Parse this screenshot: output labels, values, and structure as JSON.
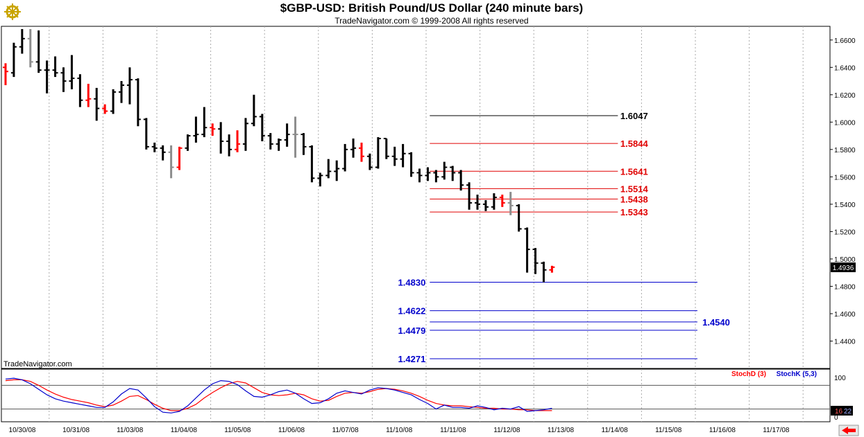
{
  "header": {
    "title": "$GBP-USD:  British Pound/US Dollar  (240 minute bars)",
    "subtitle": "TradeNavigator.com © 1999-2008 All rights reserved"
  },
  "watermark": "TradeNavigator.com",
  "colors": {
    "up": "#000000",
    "down": "#ff0000",
    "neutral": "#8c8c8c",
    "retracement": "#e00000",
    "extension": "#0000cc",
    "stochD": "#ff0000",
    "stochK": "#0000cc",
    "grid": "#aaaaaa"
  },
  "icons": {
    "logo": "ship-wheel-icon",
    "scroll": "arrow-left-icon"
  },
  "chart_data": [
    {
      "type": "ohlc",
      "title": "$GBP-USD:  British Pound/US Dollar  (240 minute bars)",
      "ylim": [
        1.42,
        1.67
      ],
      "yticks": [
        "1.6600",
        "1.6400",
        "1.6200",
        "1.6000",
        "1.5800",
        "1.5600",
        "1.5400",
        "1.5200",
        "1.5000",
        "1.4800",
        "1.4600",
        "1.4400"
      ],
      "x_labels": [
        "10/30/08",
        "10/31/08",
        "11/03/08",
        "11/04/08",
        "11/05/08",
        "11/06/08",
        "11/07/08",
        "11/10/08",
        "11/11/08",
        "11/12/08",
        "11/13/08",
        "11/14/08",
        "11/15/08",
        "11/16/08",
        "11/17/08"
      ],
      "last_price": "1.4936",
      "bars": [
        {
          "o": 1.64,
          "h": 1.643,
          "l": 1.627,
          "c": 1.637,
          "d": "dn"
        },
        {
          "o": 1.636,
          "h": 1.658,
          "l": 1.633,
          "c": 1.655,
          "d": "up"
        },
        {
          "o": 1.655,
          "h": 1.668,
          "l": 1.65,
          "c": 1.661,
          "d": "up"
        },
        {
          "o": 1.661,
          "h": 1.668,
          "l": 1.64,
          "c": 1.644,
          "d": "nu"
        },
        {
          "o": 1.644,
          "h": 1.667,
          "l": 1.636,
          "c": 1.638,
          "d": "up"
        },
        {
          "o": 1.638,
          "h": 1.645,
          "l": 1.621,
          "c": 1.638,
          "d": "up"
        },
        {
          "o": 1.638,
          "h": 1.648,
          "l": 1.633,
          "c": 1.636,
          "d": "up"
        },
        {
          "o": 1.636,
          "h": 1.64,
          "l": 1.622,
          "c": 1.63,
          "d": "up"
        },
        {
          "o": 1.63,
          "h": 1.649,
          "l": 1.624,
          "c": 1.632,
          "d": "up"
        },
        {
          "o": 1.632,
          "h": 1.635,
          "l": 1.611,
          "c": 1.616,
          "d": "up"
        },
        {
          "o": 1.616,
          "h": 1.628,
          "l": 1.611,
          "c": 1.617,
          "d": "dn"
        },
        {
          "o": 1.617,
          "h": 1.625,
          "l": 1.601,
          "c": 1.61,
          "d": "up"
        },
        {
          "o": 1.61,
          "h": 1.613,
          "l": 1.606,
          "c": 1.608,
          "d": "dn"
        },
        {
          "o": 1.608,
          "h": 1.624,
          "l": 1.606,
          "c": 1.622,
          "d": "up"
        },
        {
          "o": 1.622,
          "h": 1.63,
          "l": 1.614,
          "c": 1.627,
          "d": "up"
        },
        {
          "o": 1.627,
          "h": 1.64,
          "l": 1.613,
          "c": 1.631,
          "d": "up"
        },
        {
          "o": 1.631,
          "h": 1.632,
          "l": 1.597,
          "c": 1.602,
          "d": "up"
        },
        {
          "o": 1.602,
          "h": 1.603,
          "l": 1.58,
          "c": 1.582,
          "d": "up"
        },
        {
          "o": 1.582,
          "h": 1.585,
          "l": 1.578,
          "c": 1.581,
          "d": "up"
        },
        {
          "o": 1.581,
          "h": 1.583,
          "l": 1.572,
          "c": 1.578,
          "d": "up"
        },
        {
          "o": 1.578,
          "h": 1.583,
          "l": 1.559,
          "c": 1.567,
          "d": "nu"
        },
        {
          "o": 1.567,
          "h": 1.582,
          "l": 1.565,
          "c": 1.581,
          "d": "dn"
        },
        {
          "o": 1.581,
          "h": 1.591,
          "l": 1.579,
          "c": 1.59,
          "d": "up"
        },
        {
          "o": 1.59,
          "h": 1.604,
          "l": 1.585,
          "c": 1.591,
          "d": "up"
        },
        {
          "o": 1.591,
          "h": 1.611,
          "l": 1.589,
          "c": 1.596,
          "d": "up"
        },
        {
          "o": 1.596,
          "h": 1.599,
          "l": 1.59,
          "c": 1.595,
          "d": "dn"
        },
        {
          "o": 1.595,
          "h": 1.6,
          "l": 1.577,
          "c": 1.586,
          "d": "up"
        },
        {
          "o": 1.586,
          "h": 1.591,
          "l": 1.575,
          "c": 1.58,
          "d": "up"
        },
        {
          "o": 1.58,
          "h": 1.594,
          "l": 1.578,
          "c": 1.584,
          "d": "dn"
        },
        {
          "o": 1.584,
          "h": 1.603,
          "l": 1.579,
          "c": 1.599,
          "d": "up"
        },
        {
          "o": 1.599,
          "h": 1.62,
          "l": 1.597,
          "c": 1.604,
          "d": "up"
        },
        {
          "o": 1.604,
          "h": 1.606,
          "l": 1.586,
          "c": 1.59,
          "d": "up"
        },
        {
          "o": 1.59,
          "h": 1.592,
          "l": 1.58,
          "c": 1.584,
          "d": "up"
        },
        {
          "o": 1.584,
          "h": 1.588,
          "l": 1.579,
          "c": 1.587,
          "d": "up"
        },
        {
          "o": 1.587,
          "h": 1.599,
          "l": 1.582,
          "c": 1.591,
          "d": "up"
        },
        {
          "o": 1.591,
          "h": 1.604,
          "l": 1.574,
          "c": 1.591,
          "d": "nu"
        },
        {
          "o": 1.591,
          "h": 1.592,
          "l": 1.576,
          "c": 1.582,
          "d": "up"
        },
        {
          "o": 1.582,
          "h": 1.583,
          "l": 1.556,
          "c": 1.559,
          "d": "up"
        },
        {
          "o": 1.559,
          "h": 1.563,
          "l": 1.553,
          "c": 1.561,
          "d": "up"
        },
        {
          "o": 1.561,
          "h": 1.573,
          "l": 1.559,
          "c": 1.564,
          "d": "up"
        },
        {
          "o": 1.564,
          "h": 1.572,
          "l": 1.557,
          "c": 1.566,
          "d": "up"
        },
        {
          "o": 1.566,
          "h": 1.584,
          "l": 1.564,
          "c": 1.58,
          "d": "up"
        },
        {
          "o": 1.58,
          "h": 1.588,
          "l": 1.574,
          "c": 1.581,
          "d": "up"
        },
        {
          "o": 1.581,
          "h": 1.585,
          "l": 1.571,
          "c": 1.575,
          "d": "dn"
        },
        {
          "o": 1.575,
          "h": 1.577,
          "l": 1.565,
          "c": 1.567,
          "d": "up"
        },
        {
          "o": 1.567,
          "h": 1.589,
          "l": 1.566,
          "c": 1.588,
          "d": "up"
        },
        {
          "o": 1.588,
          "h": 1.588,
          "l": 1.573,
          "c": 1.575,
          "d": "up"
        },
        {
          "o": 1.575,
          "h": 1.582,
          "l": 1.568,
          "c": 1.573,
          "d": "up"
        },
        {
          "o": 1.573,
          "h": 1.584,
          "l": 1.567,
          "c": 1.577,
          "d": "up"
        },
        {
          "o": 1.577,
          "h": 1.578,
          "l": 1.56,
          "c": 1.563,
          "d": "up"
        },
        {
          "o": 1.563,
          "h": 1.566,
          "l": 1.556,
          "c": 1.561,
          "d": "up"
        },
        {
          "o": 1.561,
          "h": 1.567,
          "l": 1.557,
          "c": 1.563,
          "d": "up"
        },
        {
          "o": 1.563,
          "h": 1.565,
          "l": 1.556,
          "c": 1.56,
          "d": "up"
        },
        {
          "o": 1.56,
          "h": 1.571,
          "l": 1.558,
          "c": 1.567,
          "d": "up"
        },
        {
          "o": 1.567,
          "h": 1.568,
          "l": 1.557,
          "c": 1.563,
          "d": "up"
        },
        {
          "o": 1.563,
          "h": 1.565,
          "l": 1.55,
          "c": 1.554,
          "d": "up"
        },
        {
          "o": 1.554,
          "h": 1.556,
          "l": 1.536,
          "c": 1.541,
          "d": "up"
        },
        {
          "o": 1.541,
          "h": 1.547,
          "l": 1.536,
          "c": 1.54,
          "d": "up"
        },
        {
          "o": 1.54,
          "h": 1.543,
          "l": 1.535,
          "c": 1.538,
          "d": "up"
        },
        {
          "o": 1.538,
          "h": 1.548,
          "l": 1.536,
          "c": 1.545,
          "d": "up"
        },
        {
          "o": 1.545,
          "h": 1.547,
          "l": 1.538,
          "c": 1.541,
          "d": "dn"
        },
        {
          "o": 1.541,
          "h": 1.549,
          "l": 1.532,
          "c": 1.539,
          "d": "nu"
        },
        {
          "o": 1.539,
          "h": 1.54,
          "l": 1.52,
          "c": 1.522,
          "d": "up"
        },
        {
          "o": 1.522,
          "h": 1.523,
          "l": 1.49,
          "c": 1.507,
          "d": "up"
        },
        {
          "o": 1.507,
          "h": 1.508,
          "l": 1.489,
          "c": 1.497,
          "d": "up"
        },
        {
          "o": 1.497,
          "h": 1.498,
          "l": 1.483,
          "c": 1.492,
          "d": "up"
        },
        {
          "o": 1.492,
          "h": 1.495,
          "l": 1.49,
          "c": 1.494,
          "d": "dn"
        }
      ],
      "levels": [
        {
          "value": 1.6047,
          "label": "1.6047",
          "color": "#000000",
          "x1": 0.517,
          "x2": 0.744,
          "lx": 0.747,
          "anchor": "start"
        },
        {
          "value": 1.5844,
          "label": "1.5844",
          "color": "#e00000",
          "x1": 0.517,
          "x2": 0.744,
          "lx": 0.747,
          "anchor": "start"
        },
        {
          "value": 1.5641,
          "label": "1.5641",
          "color": "#e00000",
          "x1": 0.517,
          "x2": 0.744,
          "lx": 0.747,
          "anchor": "start"
        },
        {
          "value": 1.5514,
          "label": "1.5514",
          "color": "#e00000",
          "x1": 0.517,
          "x2": 0.744,
          "lx": 0.747,
          "anchor": "start"
        },
        {
          "value": 1.5438,
          "label": "1.5438",
          "color": "#e00000",
          "x1": 0.517,
          "x2": 0.744,
          "lx": 0.747,
          "anchor": "start"
        },
        {
          "value": 1.5343,
          "label": "1.5343",
          "color": "#e00000",
          "x1": 0.517,
          "x2": 0.744,
          "lx": 0.747,
          "anchor": "start"
        },
        {
          "value": 1.483,
          "label": "1.4830",
          "color": "#0000cc",
          "x1": 0.517,
          "x2": 0.84,
          "lx": 0.512,
          "anchor": "end"
        },
        {
          "value": 1.4622,
          "label": "1.4622",
          "color": "#0000cc",
          "x1": 0.517,
          "x2": 0.84,
          "lx": 0.512,
          "anchor": "end"
        },
        {
          "value": 1.454,
          "label": "1.4540",
          "color": "#0000cc",
          "x1": 0.517,
          "x2": 0.84,
          "lx": 0.846,
          "anchor": "start"
        },
        {
          "value": 1.4479,
          "label": "1.4479",
          "color": "#0000cc",
          "x1": 0.517,
          "x2": 0.84,
          "lx": 0.512,
          "anchor": "end"
        },
        {
          "value": 1.4271,
          "label": "1.4271",
          "color": "#0000cc",
          "x1": 0.517,
          "x2": 0.84,
          "lx": 0.512,
          "anchor": "end"
        }
      ]
    },
    {
      "type": "line",
      "title": "Stochastic",
      "ylim": [
        0,
        100
      ],
      "yticks": [
        "100",
        "0"
      ],
      "reference_lines": [
        80,
        20
      ],
      "current_values": [
        "16",
        "22"
      ],
      "series": [
        {
          "name": "StochD (3)",
          "color": "#ff0000",
          "values": [
            92,
            94,
            94,
            90,
            80,
            68,
            58,
            50,
            44,
            40,
            36,
            30,
            26,
            30,
            40,
            52,
            54,
            44,
            32,
            22,
            16,
            16,
            22,
            32,
            48,
            62,
            74,
            84,
            90,
            86,
            74,
            62,
            56,
            54,
            56,
            60,
            56,
            46,
            40,
            42,
            52,
            60,
            62,
            60,
            64,
            70,
            72,
            70,
            66,
            60,
            52,
            42,
            34,
            30,
            28,
            28,
            26,
            24,
            22,
            22,
            20,
            20,
            18,
            18,
            16,
            16,
            16
          ]
        },
        {
          "name": "StochK (5,3)",
          "color": "#0000cc",
          "values": [
            96,
            98,
            94,
            84,
            70,
            56,
            46,
            40,
            36,
            32,
            28,
            24,
            24,
            38,
            58,
            72,
            68,
            48,
            26,
            12,
            10,
            14,
            28,
            48,
            68,
            84,
            92,
            90,
            82,
            66,
            52,
            50,
            56,
            64,
            68,
            60,
            46,
            34,
            36,
            46,
            60,
            66,
            62,
            58,
            68,
            74,
            72,
            68,
            62,
            56,
            44,
            34,
            20,
            30,
            24,
            24,
            22,
            28,
            24,
            18,
            22,
            20,
            26,
            14,
            16,
            18,
            22
          ]
        }
      ]
    }
  ]
}
